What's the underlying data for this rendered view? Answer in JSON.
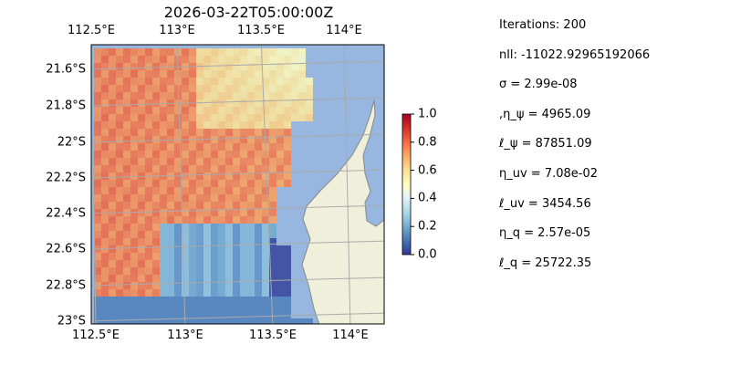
{
  "chart_data": {
    "type": "heatmap",
    "title": "2026-03-22T05:00:00Z",
    "x_ticks_top": [
      "112.5°E",
      "113°E",
      "113.5°E",
      "114°E"
    ],
    "x_ticks_bottom": [
      "112.5°E",
      "113°E",
      "113.5°E",
      "114°E"
    ],
    "y_ticks": [
      "21.6°S",
      "21.8°S",
      "22°S",
      "22.2°S",
      "22.4°S",
      "22.6°S",
      "22.8°S",
      "23°S"
    ],
    "xlim": [
      112.5,
      114.2
    ],
    "ylim": [
      -23.0,
      -21.45
    ],
    "grid": true,
    "colorbar": {
      "range": [
        0.0,
        1.0
      ],
      "ticks": [
        "1.0",
        "0.8",
        "0.6",
        "0.4",
        "0.2",
        "0.0"
      ],
      "colormap": "RdYlBu_r"
    },
    "colors": {
      "ocean": "#97b6e0",
      "land": "#efefdb",
      "coast": "#888888",
      "grid": "#aaaaaa"
    }
  },
  "info": [
    "Iterations: 200",
    "nll: -11022.92965192066",
    "σ = 2.99e-08",
    ",η_ψ = 4965.09",
    "ℓ_ψ = 87851.09",
    "η_uv = 7.08e-02",
    "ℓ_uv = 3454.56",
    "η_q = 2.57e-05",
    "ℓ_q = 25722.35"
  ]
}
